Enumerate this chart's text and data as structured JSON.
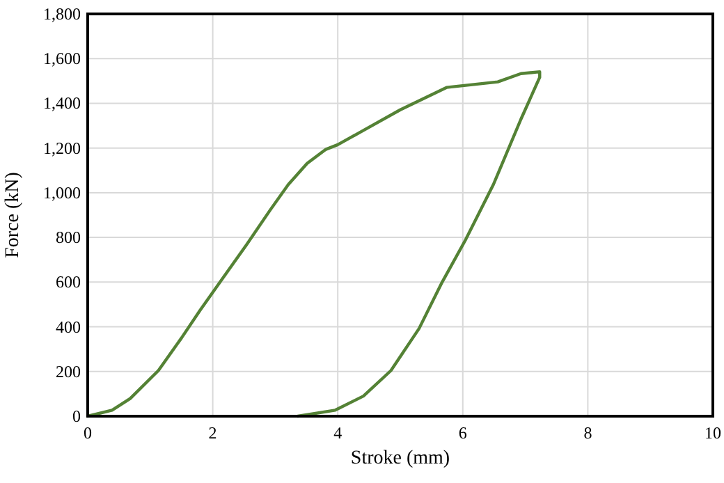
{
  "chart_data": {
    "type": "line",
    "xlabel": "Stroke (mm)",
    "ylabel": "Force (kN)",
    "xlim": [
      0,
      10
    ],
    "xticks": [
      0,
      2,
      4,
      6,
      8,
      10
    ],
    "ylim": [
      0,
      1800
    ],
    "yticks": [
      0,
      200,
      400,
      600,
      800,
      {
        "value": 1000,
        "label": "1,000"
      },
      {
        "value": 1200,
        "label": "1,200"
      },
      {
        "value": 1400,
        "label": "1,400"
      },
      {
        "value": 1600,
        "label": "1,600"
      },
      {
        "value": 1800,
        "label": "1,800"
      }
    ],
    "grid": true,
    "marker": "none",
    "line_style": "solid",
    "series": [
      {
        "color": "#548235",
        "x": [
          0,
          0.39,
          0.68,
          1.13,
          1.5,
          1.8,
          2.17,
          2.54,
          2.92,
          3.21,
          3.51,
          3.81,
          4.0,
          4.4,
          5.0,
          5.74,
          6.56,
          6.93,
          7.23,
          7.23,
          6.93,
          6.49,
          6.04,
          5.67,
          5.3,
          4.85,
          4.41,
          3.96,
          3.36
        ],
        "values": [
          0,
          27,
          79,
          204,
          350,
          475,
          621,
          767,
          923,
          1037,
          1131,
          1194,
          1215,
          1277,
          1371,
          1471,
          1496,
          1533,
          1541,
          1516,
          1329,
          1037,
          787,
          600,
          392,
          204,
          90,
          27,
          0
        ]
      }
    ]
  }
}
